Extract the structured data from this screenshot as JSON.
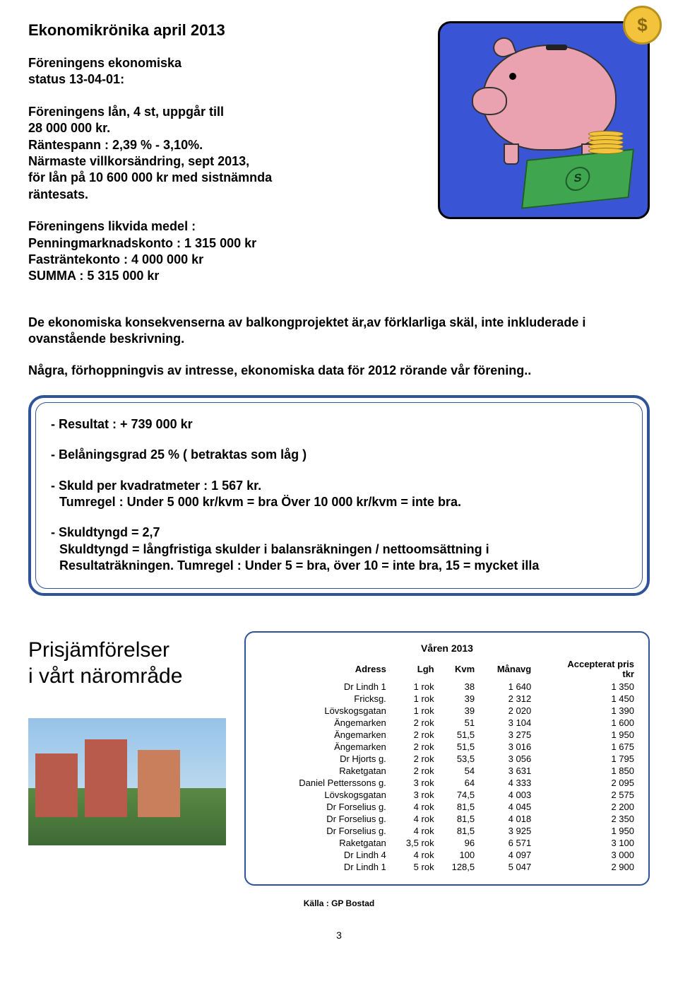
{
  "title": "Ekonomikrönika april 2013",
  "para1_l1": "Föreningens ekonomiska",
  "para1_l2": "status 13-04-01:",
  "para2_l1": "Föreningens lån, 4 st, uppgår till",
  "para2_l2": "28 000 000 kr.",
  "para2_l3": "Räntespann : 2,39 % - 3,10%.",
  "para2_l4": "Närmaste villkorsändring, sept 2013,",
  "para2_l5": "för lån på 10 600 000 kr med sistnämnda",
  "para2_l6": "räntesats.",
  "para3_l1": "Föreningens likvida medel :",
  "para3_l2": "Penningmarknadskonto : 1 315 000 kr",
  "para3_l3": "Fasträntekonto : 4 000 000 kr",
  "para3_l4": "SUMMA : 5 315 000 kr",
  "para4": "De ekonomiska konsekvenserna av balkongprojektet är,av förklarliga skäl, inte inkluderade i ovanstående beskrivning.",
  "para5": "Några, förhoppningvis av intresse, ekonomiska data för 2012 rörande vår förening..",
  "bb1": "-  Resultat  : + 739 000 kr",
  "bb2": "-  Belåningsgrad  25 % ( betraktas som låg )",
  "bb3_l1": "- Skuld per kvadratmeter  : 1 567 kr.",
  "bb3_l2": "Tumregel : Under 5 000 kr/kvm = bra  Över 10 000 kr/kvm = inte bra.",
  "bb4_l1": "-  Skuldtyngd = 2,7",
  "bb4_l2": "Skuldtyngd = långfristiga skulder i balansräkningen / nettoomsättning i",
  "bb4_l3": "Resultaträkningen. Tumregel : Under 5 = bra, över 10 = inte bra, 15 = mycket illa",
  "price_label_l1": "Prisjämförelser",
  "price_label_l2": "i vårt närområde",
  "price_table": {
    "season": "Våren 2013",
    "columns": [
      "Adress",
      "Lgh",
      "Kvm",
      "Månavg",
      "Accepterat pris tkr"
    ],
    "col_accept_l1": "Accepterat pris",
    "col_accept_l2": "tkr",
    "rows": [
      [
        "Dr Lindh 1",
        "1 rok",
        "38",
        "1 640",
        "1 350"
      ],
      [
        "Fricksg.",
        "1 rok",
        "39",
        "2 312",
        "1 450"
      ],
      [
        "Lövskogsgatan",
        "1 rok",
        "39",
        "2 020",
        "1 390"
      ],
      [
        "Ängemarken",
        "2 rok",
        "51",
        "3 104",
        "1 600"
      ],
      [
        "Ängemarken",
        "2 rok",
        "51,5",
        "3 275",
        "1 950"
      ],
      [
        "Ängemarken",
        "2 rok",
        "51,5",
        "3 016",
        "1 675"
      ],
      [
        "Dr Hjorts g.",
        "2 rok",
        "53,5",
        "3 056",
        "1 795"
      ],
      [
        "Raketgatan",
        "2 rok",
        "54",
        "3 631",
        "1 850"
      ],
      [
        "Daniel Petterssons g.",
        "3 rok",
        "64",
        "4 333",
        "2 095"
      ],
      [
        "Lövskogsgatan",
        "3 rok",
        "74,5",
        "4 003",
        "2 575"
      ],
      [
        "Dr Forselius g.",
        "4 rok",
        "81,5",
        "4 045",
        "2 200"
      ],
      [
        "Dr Forselius g.",
        "4 rok",
        "81,5",
        "4 018",
        "2 350"
      ],
      [
        "Dr Forselius g.",
        "4 rok",
        "81,5",
        "3 925",
        "1 950"
      ],
      [
        "Raketgatan",
        "3,5 rok",
        "96",
        "6 571",
        "3 100"
      ],
      [
        "Dr Lindh 4",
        "4 rok",
        "100",
        "4 097",
        "3 000"
      ],
      [
        "Dr Lindh 1",
        "5 rok",
        "128,5",
        "5 047",
        "2 900"
      ]
    ]
  },
  "source": "Källa : GP Bostad",
  "pagenum": "3"
}
